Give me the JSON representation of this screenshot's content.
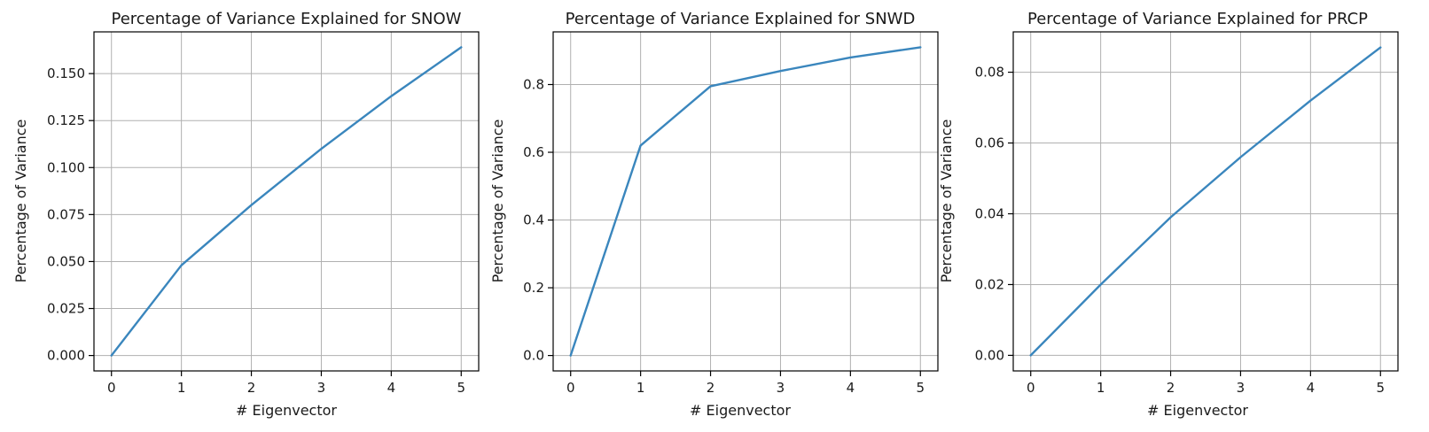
{
  "chart_data": [
    {
      "type": "line",
      "title": "Percentage of Variance Explained for SNOW",
      "xlabel": "# Eigenvector",
      "ylabel": "Percentage of Variance",
      "x": [
        0,
        1,
        2,
        3,
        4,
        5
      ],
      "series": [
        {
          "values": [
            0.0,
            0.048,
            0.08,
            0.11,
            0.138,
            0.164
          ],
          "color": "#3a86bd"
        }
      ],
      "xticks": [
        0,
        1,
        2,
        3,
        4,
        5
      ],
      "xtick_labels": [
        "0",
        "1",
        "2",
        "3",
        "4",
        "5"
      ],
      "yticks": [
        0.0,
        0.025,
        0.05,
        0.075,
        0.1,
        0.125,
        0.15
      ],
      "ytick_labels": [
        "0.000",
        "0.025",
        "0.050",
        "0.075",
        "0.100",
        "0.125",
        "0.150"
      ],
      "xlim": [
        -0.25,
        5.25
      ],
      "ylim": [
        -0.0082,
        0.1722
      ],
      "grid": true
    },
    {
      "type": "line",
      "title": "Percentage of Variance Explained for SNWD",
      "xlabel": "# Eigenvector",
      "ylabel": "Percentage of Variance",
      "x": [
        0,
        1,
        2,
        3,
        4,
        5
      ],
      "series": [
        {
          "values": [
            0.0,
            0.62,
            0.795,
            0.84,
            0.88,
            0.91
          ],
          "color": "#3a86bd"
        }
      ],
      "xticks": [
        0,
        1,
        2,
        3,
        4,
        5
      ],
      "xtick_labels": [
        "0",
        "1",
        "2",
        "3",
        "4",
        "5"
      ],
      "yticks": [
        0.0,
        0.2,
        0.4,
        0.6,
        0.8
      ],
      "ytick_labels": [
        "0.0",
        "0.2",
        "0.4",
        "0.6",
        "0.8"
      ],
      "xlim": [
        -0.25,
        5.25
      ],
      "ylim": [
        -0.0455,
        0.9555
      ],
      "grid": true
    },
    {
      "type": "line",
      "title": "Percentage of Variance Explained for PRCP",
      "xlabel": "# Eigenvector",
      "ylabel": "Percentage of Variance",
      "x": [
        0,
        1,
        2,
        3,
        4,
        5
      ],
      "series": [
        {
          "values": [
            0.0,
            0.02,
            0.039,
            0.056,
            0.072,
            0.087
          ],
          "color": "#3a86bd"
        }
      ],
      "xticks": [
        0,
        1,
        2,
        3,
        4,
        5
      ],
      "xtick_labels": [
        "0",
        "1",
        "2",
        "3",
        "4",
        "5"
      ],
      "yticks": [
        0.0,
        0.02,
        0.04,
        0.06,
        0.08
      ],
      "ytick_labels": [
        "0.00",
        "0.02",
        "0.04",
        "0.06",
        "0.08"
      ],
      "xlim": [
        -0.25,
        5.25
      ],
      "ylim": [
        -0.0044,
        0.0914
      ],
      "grid": true
    }
  ]
}
